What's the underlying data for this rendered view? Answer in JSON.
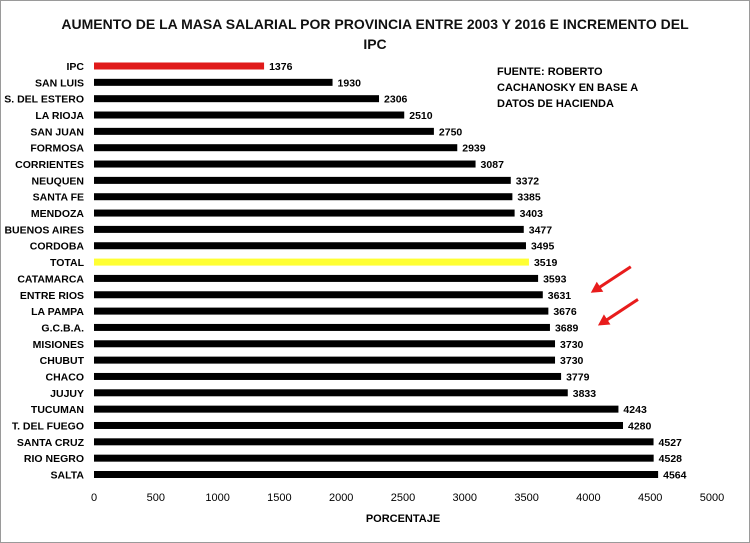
{
  "chart_data": {
    "type": "bar",
    "orientation": "horizontal",
    "title_line1": "AUMENTO DE LA MASA SALARIAL POR PROVINCIA ENTRE 2003 Y 2016 E INCREMENTO DEL",
    "title_line2": "IPC",
    "xlabel": "PORCENTAJE",
    "xlim": [
      0,
      5000
    ],
    "xticks": [
      0,
      500,
      1000,
      1500,
      2000,
      2500,
      3000,
      3500,
      4000,
      4500,
      5000
    ],
    "grid": false,
    "source_note": [
      "FUENTE: ROBERTO",
      "CACHANOSKY EN BASE A",
      "DATOS DE HACIENDA"
    ],
    "categories": [
      "IPC",
      "SAN LUIS",
      "S. DEL ESTERO",
      "LA RIOJA",
      "SAN JUAN",
      "FORMOSA",
      "CORRIENTES",
      "NEUQUEN",
      "SANTA FE",
      "MENDOZA",
      "BUENOS AIRES",
      "CORDOBA",
      "TOTAL",
      "CATAMARCA",
      "ENTRE RIOS",
      "LA PAMPA",
      "G.C.B.A.",
      "MISIONES",
      "CHUBUT",
      "CHACO",
      "JUJUY",
      "TUCUMAN",
      "T. DEL FUEGO",
      "SANTA CRUZ",
      "RIO NEGRO",
      "SALTA"
    ],
    "values": [
      1376,
      1930,
      2306,
      2510,
      2750,
      2939,
      3087,
      3372,
      3385,
      3403,
      3477,
      3495,
      3519,
      3593,
      3631,
      3676,
      3689,
      3730,
      3730,
      3779,
      3833,
      4243,
      4280,
      4527,
      4528,
      4564
    ],
    "bar_colors": {
      "default": "#000000",
      "IPC": "#e01a1a",
      "TOTAL": "#ffff33"
    },
    "arrow_color": "#e81c1c",
    "highlighted_arrows": [
      "ENTRE RIOS",
      "G.C.B.A."
    ]
  }
}
